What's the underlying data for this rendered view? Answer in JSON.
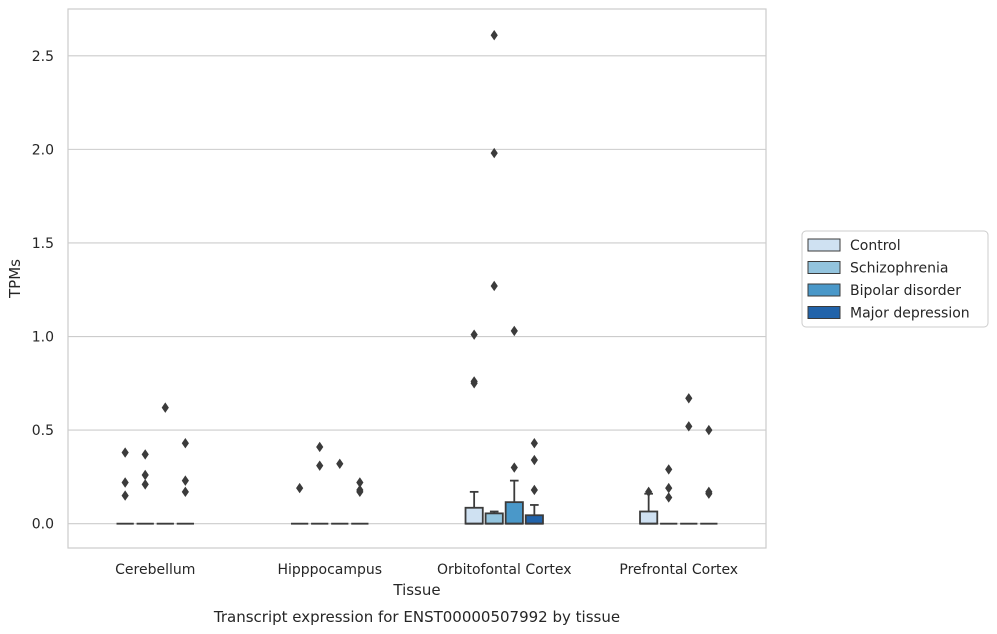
{
  "chart_data": {
    "type": "box",
    "title": "",
    "caption": "Transcript expression for ENST00000507992 by tissue",
    "xlabel": "Tissue",
    "ylabel": "TPMs",
    "ylim": [
      -0.13,
      2.75
    ],
    "yticks": [
      "0.0",
      "0.5",
      "1.0",
      "1.5",
      "2.0",
      "2.5"
    ],
    "ytick_values": [
      0,
      0.5,
      1.0,
      1.5,
      2.0,
      2.5
    ],
    "grid": "horizontal",
    "legend_position": "right",
    "categories": [
      "Cerebellum",
      "Hipppocampus",
      "Orbitofontal Cortex",
      "Prefrontal Cortex"
    ],
    "series": [
      {
        "name": "Control",
        "color": "#cfe1f2",
        "boxes": [
          {
            "q1": 0,
            "median": 0,
            "q3": 0,
            "whisker_low": 0,
            "whisker_high": 0,
            "outliers": [
              0.38,
              0.22,
              0.15
            ]
          },
          {
            "q1": 0,
            "median": 0,
            "q3": 0,
            "whisker_low": 0,
            "whisker_high": 0,
            "outliers": [
              0.19
            ]
          },
          {
            "q1": 0,
            "median": 0,
            "q3": 0.085,
            "whisker_low": 0,
            "whisker_high": 0.17,
            "outliers": [
              1.01,
              0.76,
              0.75
            ]
          },
          {
            "q1": 0,
            "median": 0,
            "q3": 0.065,
            "whisker_low": 0,
            "whisker_high": 0.16,
            "outliers": [
              0.17
            ]
          }
        ]
      },
      {
        "name": "Schizophrenia",
        "color": "#93c4de",
        "boxes": [
          {
            "q1": 0,
            "median": 0,
            "q3": 0,
            "whisker_low": 0,
            "whisker_high": 0,
            "outliers": [
              0.37,
              0.26,
              0.21
            ]
          },
          {
            "q1": 0,
            "median": 0,
            "q3": 0,
            "whisker_low": 0,
            "whisker_high": 0,
            "outliers": [
              0.41,
              0.31
            ]
          },
          {
            "q1": 0,
            "median": 0,
            "q3": 0.055,
            "whisker_low": 0,
            "whisker_high": 0.065,
            "outliers": [
              2.61,
              1.98,
              1.27
            ]
          },
          {
            "q1": 0,
            "median": 0,
            "q3": 0,
            "whisker_low": 0,
            "whisker_high": 0,
            "outliers": [
              0.29,
              0.19,
              0.14
            ]
          }
        ]
      },
      {
        "name": "Bipolar disorder",
        "color": "#4a98c9",
        "boxes": [
          {
            "q1": 0,
            "median": 0,
            "q3": 0,
            "whisker_low": 0,
            "whisker_high": 0,
            "outliers": [
              0.62
            ]
          },
          {
            "q1": 0,
            "median": 0,
            "q3": 0,
            "whisker_low": 0,
            "whisker_high": 0,
            "outliers": [
              0.32
            ]
          },
          {
            "q1": 0,
            "median": 0,
            "q3": 0.115,
            "whisker_low": 0,
            "whisker_high": 0.23,
            "outliers": [
              1.03,
              0.3
            ]
          },
          {
            "q1": 0,
            "median": 0,
            "q3": 0,
            "whisker_low": 0,
            "whisker_high": 0,
            "outliers": [
              0.67,
              0.52
            ]
          }
        ]
      },
      {
        "name": "Major depression",
        "color": "#2163aa",
        "boxes": [
          {
            "q1": 0,
            "median": 0,
            "q3": 0,
            "whisker_low": 0,
            "whisker_high": 0,
            "outliers": [
              0.43,
              0.23,
              0.17
            ]
          },
          {
            "q1": 0,
            "median": 0,
            "q3": 0,
            "whisker_low": 0,
            "whisker_high": 0,
            "outliers": [
              0.22,
              0.18,
              0.17
            ]
          },
          {
            "q1": 0,
            "median": 0,
            "q3": 0.045,
            "whisker_low": 0,
            "whisker_high": 0.1,
            "outliers": [
              0.43,
              0.34,
              0.18
            ]
          },
          {
            "q1": 0,
            "median": 0,
            "q3": 0,
            "whisker_low": 0,
            "whisker_high": 0,
            "outliers": [
              0.5,
              0.17,
              0.16
            ]
          }
        ]
      }
    ]
  }
}
